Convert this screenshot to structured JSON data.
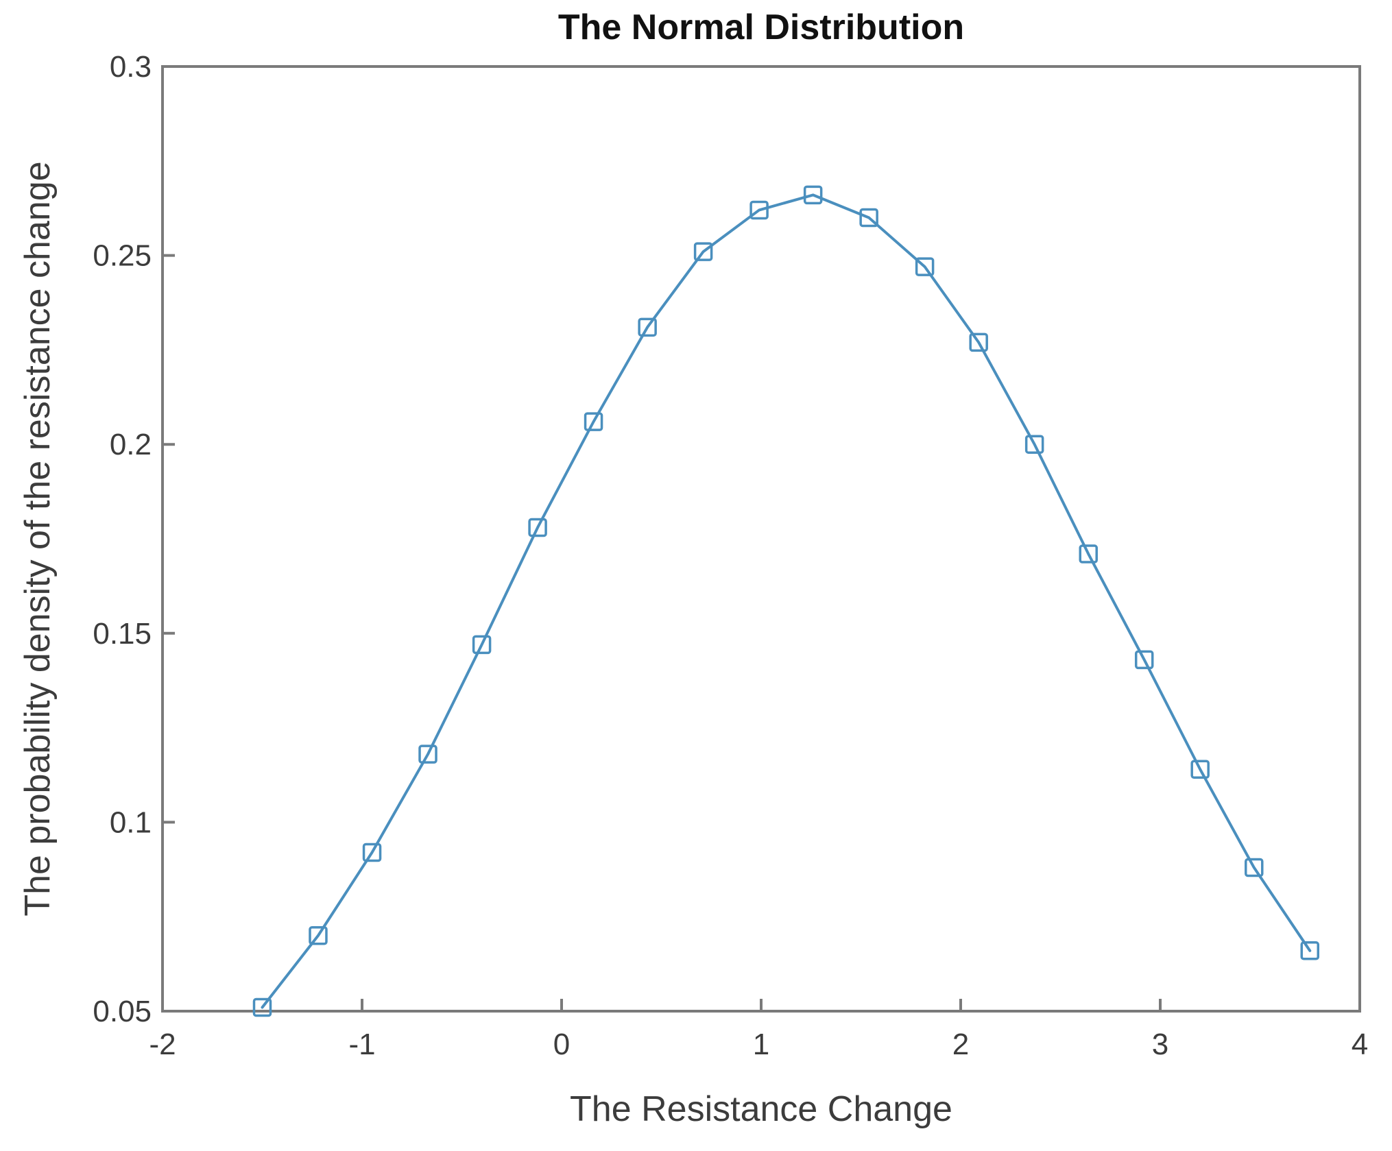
{
  "chart_data": {
    "type": "line",
    "title": "The Normal Distribution",
    "xlabel": "The Resistance Change",
    "ylabel": "The probability density of the resistance change",
    "xlim": [
      -2,
      4
    ],
    "ylim": [
      0.05,
      0.3
    ],
    "x_tick_values": [
      -2,
      -1,
      0,
      1,
      2,
      3,
      4
    ],
    "x_tick_labels": [
      "-2",
      "-1",
      "0",
      "1",
      "2",
      "3",
      "4"
    ],
    "y_tick_values": [
      0.05,
      0.1,
      0.15,
      0.2,
      0.25,
      0.3
    ],
    "y_tick_labels": [
      "0.05",
      "0.1",
      "0.15",
      "0.2",
      "0.25",
      "0.3"
    ],
    "grid": false,
    "legend": "none",
    "marker": "open-square",
    "series": [
      {
        "name": "series-1",
        "x": [
          -1.5,
          -1.22,
          -0.95,
          -0.67,
          -0.4,
          -0.12,
          0.16,
          0.43,
          0.71,
          0.99,
          1.26,
          1.54,
          1.82,
          2.09,
          2.37,
          2.64,
          2.92,
          3.2,
          3.47,
          3.75
        ],
        "y": [
          0.051,
          0.07,
          0.092,
          0.118,
          0.147,
          0.178,
          0.206,
          0.231,
          0.251,
          0.262,
          0.266,
          0.26,
          0.247,
          0.227,
          0.2,
          0.171,
          0.143,
          0.114,
          0.088,
          0.066
        ]
      }
    ]
  },
  "colors": {
    "line": "#4a8fbe",
    "axis": "#7a7a7a",
    "tick_text": "#3c3c3c",
    "title_text": "#111111",
    "background": "#ffffff"
  }
}
